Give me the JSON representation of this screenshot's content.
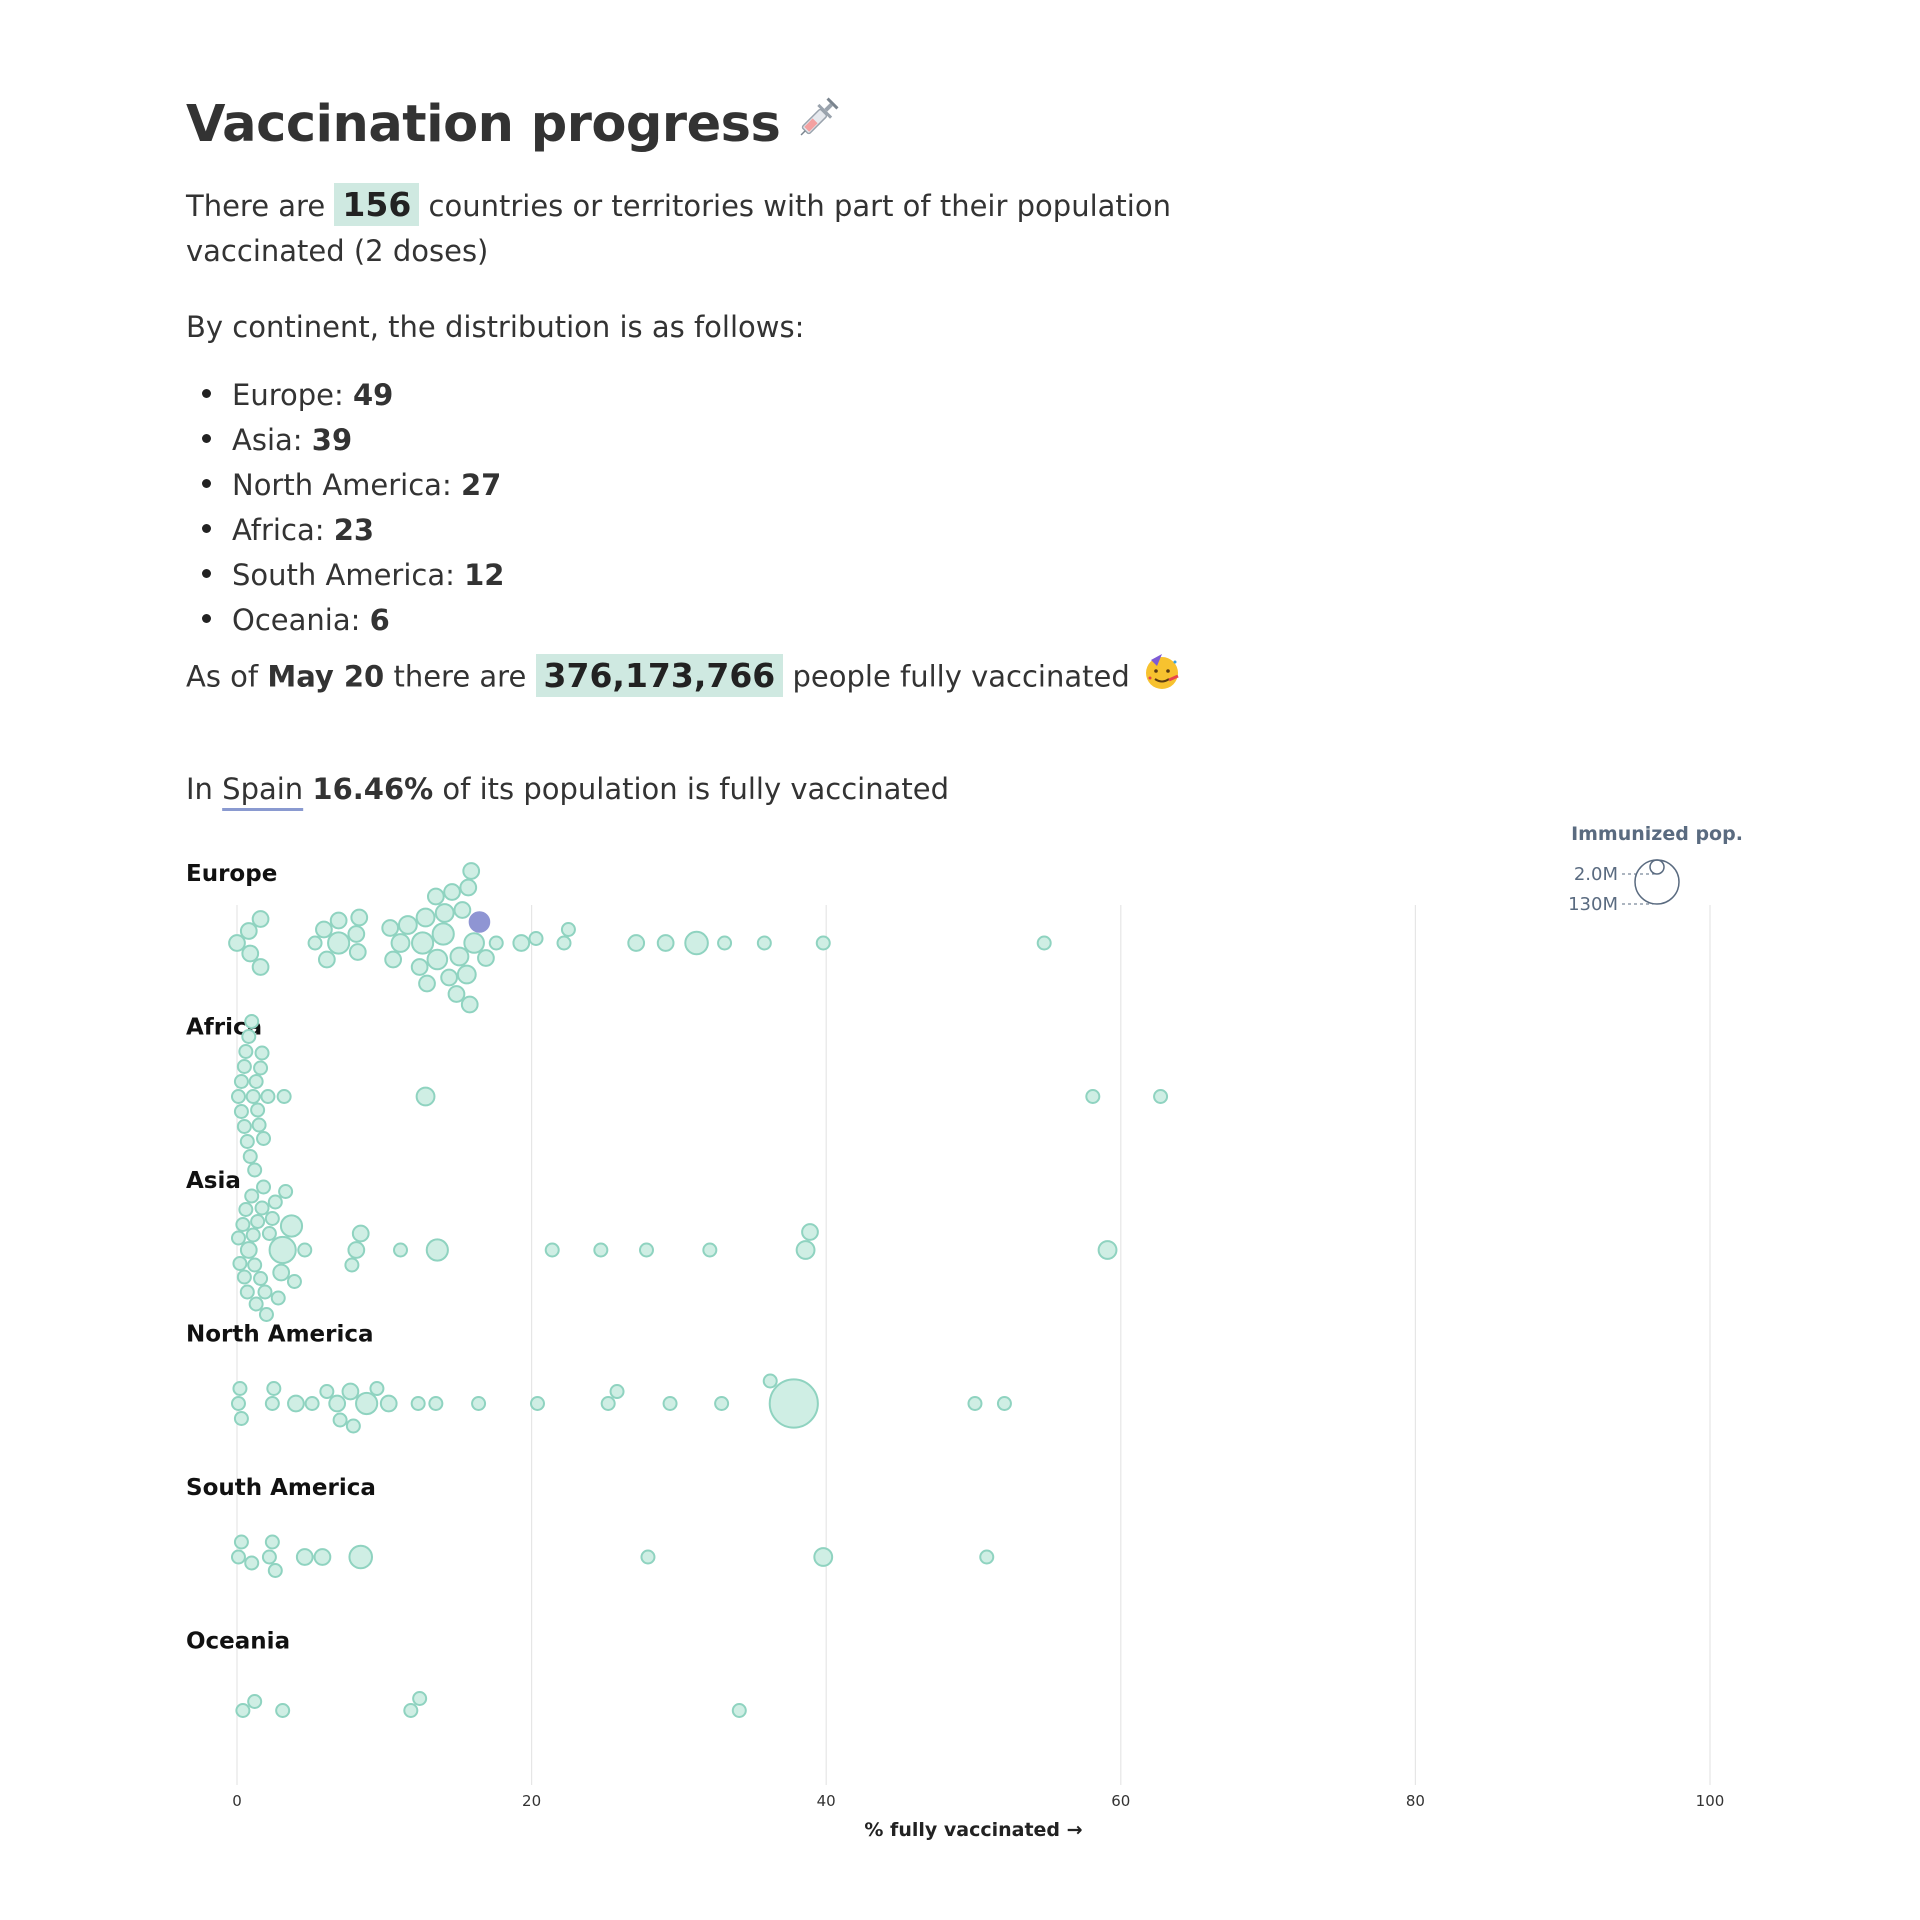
{
  "header": {
    "title": "Vaccination progress",
    "title_icon": "syringe-icon"
  },
  "intro": {
    "prefix": "There are",
    "count": "156",
    "suffix": "countries or territories with part of their population vaccinated (2 doses)"
  },
  "distribution": {
    "intro": "By continent, the distribution is as follows:",
    "items": [
      {
        "label": "Europe:",
        "value": "49"
      },
      {
        "label": "Asia:",
        "value": "39"
      },
      {
        "label": "North America:",
        "value": "27"
      },
      {
        "label": "Africa:",
        "value": "23"
      },
      {
        "label": "South America:",
        "value": "12"
      },
      {
        "label": "Oceania:",
        "value": "6"
      }
    ]
  },
  "summary": {
    "prefix": "As of",
    "date": "May 20",
    "middle": "there are",
    "total": "376,173,766",
    "suffix": "people fully vaccinated",
    "icon": "partying-face-icon"
  },
  "highlight": {
    "prefix": "In",
    "country": "Spain",
    "percent": "16.46%",
    "suffix": "of its population is fully vaccinated"
  },
  "chart_data": {
    "type": "scatter",
    "subtype": "beeswarm",
    "xlabel": "% fully vaccinated →",
    "xlim": [
      0,
      100
    ],
    "xticks": [
      0,
      20,
      40,
      60,
      80,
      100
    ],
    "grid": true,
    "size_legend": {
      "title": "Immunized pop.",
      "entries": [
        {
          "label": "2.0M",
          "value": 2000000
        },
        {
          "label": "130M",
          "value": 130000000
        }
      ]
    },
    "colors": {
      "fill": "#cfeee4",
      "stroke": "#8fd3c0",
      "highlight": "#8f95d3",
      "grid": "#e6e6e6",
      "axis_text": "#333333"
    },
    "highlighted_country": "Spain",
    "series": [
      {
        "name": "Europe",
        "points": [
          {
            "x": 0,
            "s": 2
          },
          {
            "x": 0.8,
            "s": 2
          },
          {
            "x": 0.9,
            "s": 2
          },
          {
            "x": 1.6,
            "s": 2
          },
          {
            "x": 1.6,
            "s": 2
          },
          {
            "x": 5.3,
            "s": 1
          },
          {
            "x": 5.9,
            "s": 2
          },
          {
            "x": 6.1,
            "s": 2
          },
          {
            "x": 6.9,
            "s": 5
          },
          {
            "x": 6.9,
            "s": 2
          },
          {
            "x": 8.1,
            "s": 2
          },
          {
            "x": 8.2,
            "s": 2
          },
          {
            "x": 8.3,
            "s": 2
          },
          {
            "x": 10.4,
            "s": 2
          },
          {
            "x": 10.6,
            "s": 2
          },
          {
            "x": 11.1,
            "s": 3
          },
          {
            "x": 11.6,
            "s": 3
          },
          {
            "x": 12.4,
            "s": 2
          },
          {
            "x": 12.6,
            "s": 5
          },
          {
            "x": 12.9,
            "s": 2
          },
          {
            "x": 12.8,
            "s": 3
          },
          {
            "x": 13.5,
            "s": 2
          },
          {
            "x": 13.6,
            "s": 4
          },
          {
            "x": 14.1,
            "s": 3
          },
          {
            "x": 14,
            "s": 5
          },
          {
            "x": 14.4,
            "s": 2
          },
          {
            "x": 14.6,
            "s": 2
          },
          {
            "x": 14.9,
            "s": 2
          },
          {
            "x": 15.1,
            "s": 3
          },
          {
            "x": 15.3,
            "s": 2
          },
          {
            "x": 15.6,
            "s": 3
          },
          {
            "x": 15.7,
            "s": 2
          },
          {
            "x": 15.8,
            "s": 2
          },
          {
            "x": 15.9,
            "s": 2
          },
          {
            "x": 16.1,
            "s": 4
          },
          {
            "x": 16.46,
            "s": 4,
            "name": "Spain"
          },
          {
            "x": 16.9,
            "s": 2
          },
          {
            "x": 17.6,
            "s": 1
          },
          {
            "x": 19.3,
            "s": 2
          },
          {
            "x": 20.3,
            "s": 1
          },
          {
            "x": 22.2,
            "s": 1
          },
          {
            "x": 22.5,
            "s": 1
          },
          {
            "x": 27.1,
            "s": 2
          },
          {
            "x": 29.1,
            "s": 2
          },
          {
            "x": 31.2,
            "s": 6
          },
          {
            "x": 33.1,
            "s": 1
          },
          {
            "x": 35.8,
            "s": 1
          },
          {
            "x": 39.8,
            "s": 1
          },
          {
            "x": 54.8,
            "s": 1
          }
        ]
      },
      {
        "name": "Africa",
        "points": [
          {
            "x": 0.1,
            "s": 1
          },
          {
            "x": 0.3,
            "s": 1
          },
          {
            "x": 0.3,
            "s": 1
          },
          {
            "x": 0.5,
            "s": 1
          },
          {
            "x": 0.5,
            "s": 1
          },
          {
            "x": 0.6,
            "s": 1
          },
          {
            "x": 0.7,
            "s": 1
          },
          {
            "x": 0.8,
            "s": 1
          },
          {
            "x": 0.9,
            "s": 1
          },
          {
            "x": 1,
            "s": 1
          },
          {
            "x": 1.1,
            "s": 1
          },
          {
            "x": 1.2,
            "s": 1
          },
          {
            "x": 1.3,
            "s": 1
          },
          {
            "x": 1.4,
            "s": 1
          },
          {
            "x": 1.5,
            "s": 1
          },
          {
            "x": 1.6,
            "s": 1
          },
          {
            "x": 1.7,
            "s": 1
          },
          {
            "x": 1.8,
            "s": 1
          },
          {
            "x": 2.1,
            "s": 1
          },
          {
            "x": 3.2,
            "s": 1
          },
          {
            "x": 12.8,
            "s": 3
          },
          {
            "x": 58.1,
            "s": 1
          },
          {
            "x": 62.7,
            "s": 1
          }
        ]
      },
      {
        "name": "Asia",
        "points": [
          {
            "x": 0.1,
            "s": 1
          },
          {
            "x": 0.2,
            "s": 1
          },
          {
            "x": 0.4,
            "s": 1
          },
          {
            "x": 0.5,
            "s": 1
          },
          {
            "x": 0.6,
            "s": 1
          },
          {
            "x": 0.7,
            "s": 1
          },
          {
            "x": 0.8,
            "s": 2
          },
          {
            "x": 1,
            "s": 1
          },
          {
            "x": 1.1,
            "s": 1
          },
          {
            "x": 1.2,
            "s": 1
          },
          {
            "x": 1.3,
            "s": 1
          },
          {
            "x": 1.4,
            "s": 1
          },
          {
            "x": 1.6,
            "s": 1
          },
          {
            "x": 1.7,
            "s": 1
          },
          {
            "x": 1.8,
            "s": 1
          },
          {
            "x": 1.9,
            "s": 1
          },
          {
            "x": 2,
            "s": 1
          },
          {
            "x": 2.2,
            "s": 1
          },
          {
            "x": 2.4,
            "s": 1
          },
          {
            "x": 2.6,
            "s": 1
          },
          {
            "x": 2.8,
            "s": 1
          },
          {
            "x": 3,
            "s": 2
          },
          {
            "x": 3.1,
            "s": 9
          },
          {
            "x": 3.3,
            "s": 1
          },
          {
            "x": 3.7,
            "s": 5
          },
          {
            "x": 3.9,
            "s": 1
          },
          {
            "x": 4.6,
            "s": 1
          },
          {
            "x": 7.8,
            "s": 1
          },
          {
            "x": 8.1,
            "s": 2
          },
          {
            "x": 8.4,
            "s": 2
          },
          {
            "x": 11.1,
            "s": 1
          },
          {
            "x": 13.6,
            "s": 5
          },
          {
            "x": 21.4,
            "s": 1
          },
          {
            "x": 24.7,
            "s": 1
          },
          {
            "x": 27.8,
            "s": 1
          },
          {
            "x": 32.1,
            "s": 1
          },
          {
            "x": 38.6,
            "s": 3
          },
          {
            "x": 38.9,
            "s": 2
          },
          {
            "x": 59.1,
            "s": 3
          }
        ]
      },
      {
        "name": "North America",
        "points": [
          {
            "x": 0.1,
            "s": 1
          },
          {
            "x": 0.2,
            "s": 1
          },
          {
            "x": 0.3,
            "s": 1
          },
          {
            "x": 2.4,
            "s": 1
          },
          {
            "x": 2.5,
            "s": 1
          },
          {
            "x": 4,
            "s": 2
          },
          {
            "x": 5.1,
            "s": 1
          },
          {
            "x": 6.1,
            "s": 1
          },
          {
            "x": 6.8,
            "s": 2
          },
          {
            "x": 7,
            "s": 1
          },
          {
            "x": 7.7,
            "s": 2
          },
          {
            "x": 7.9,
            "s": 1
          },
          {
            "x": 8.8,
            "s": 5
          },
          {
            "x": 9.5,
            "s": 1
          },
          {
            "x": 10.3,
            "s": 2
          },
          {
            "x": 12.3,
            "s": 1
          },
          {
            "x": 13.5,
            "s": 1
          },
          {
            "x": 16.4,
            "s": 1
          },
          {
            "x": 20.4,
            "s": 1
          },
          {
            "x": 25.2,
            "s": 1
          },
          {
            "x": 25.8,
            "s": 1
          },
          {
            "x": 29.4,
            "s": 1
          },
          {
            "x": 32.9,
            "s": 1
          },
          {
            "x": 36.2,
            "s": 1
          },
          {
            "x": 37.8,
            "s": 40
          },
          {
            "x": 50.1,
            "s": 1
          },
          {
            "x": 52.1,
            "s": 1
          }
        ]
      },
      {
        "name": "South America",
        "points": [
          {
            "x": 0.1,
            "s": 1
          },
          {
            "x": 0.3,
            "s": 1
          },
          {
            "x": 1,
            "s": 1
          },
          {
            "x": 2.2,
            "s": 1
          },
          {
            "x": 2.4,
            "s": 1
          },
          {
            "x": 2.6,
            "s": 1
          },
          {
            "x": 4.6,
            "s": 2
          },
          {
            "x": 5.8,
            "s": 2
          },
          {
            "x": 8.4,
            "s": 6
          },
          {
            "x": 27.9,
            "s": 1
          },
          {
            "x": 39.8,
            "s": 3
          },
          {
            "x": 50.9,
            "s": 1
          }
        ]
      },
      {
        "name": "Oceania",
        "points": [
          {
            "x": 0.4,
            "s": 1
          },
          {
            "x": 1.2,
            "s": 1
          },
          {
            "x": 3.1,
            "s": 1
          },
          {
            "x": 11.8,
            "s": 1
          },
          {
            "x": 12.4,
            "s": 1
          },
          {
            "x": 34.1,
            "s": 1
          }
        ]
      }
    ]
  }
}
